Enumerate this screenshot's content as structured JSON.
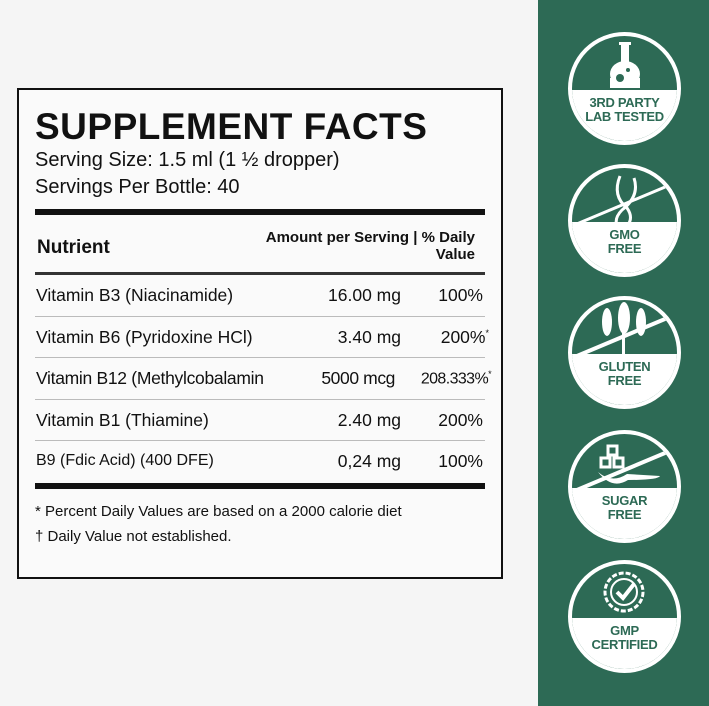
{
  "label": {
    "title": "SUPPLEMENT FACTS",
    "serving_size": "Serving Size: 1.5 ml (1 ½ dropper)",
    "servings_per": "Servings Per Bottle: 40",
    "col_nutrient": "Nutrient",
    "col_amount_line1": "Amount per Serving | % Daily",
    "col_amount_line2": "Value",
    "rows": [
      {
        "name": "Vitamin B3 (Niacinamide)",
        "amount": "16.00 mg",
        "dv": "100%",
        "mark": ""
      },
      {
        "name": "Vitamin B6 (Pyridoxine HCl)",
        "amount": "3.40 mg",
        "dv": "200%",
        "mark": "*"
      },
      {
        "name": "Vitamin B12 (Methylcobalamin",
        "amount": "5000 mcg",
        "dv": "208.333%",
        "mark": "*"
      },
      {
        "name": "Vitamin B1 (Thiamine)",
        "amount": "2.40 mg",
        "dv": "200%",
        "mark": ""
      },
      {
        "name": "B9 (Fdic Acid) (400 DFE)",
        "amount": "0,24 mg",
        "dv": "100%",
        "mark": ""
      }
    ],
    "footnote1": "* Percent Daily Values are based on a 2000 calorie diet",
    "footnote2": "† Daily Value not established."
  },
  "badges": [
    {
      "icon": "flask-icon",
      "line1": "3RD PARTY",
      "line2": "LAB TESTED"
    },
    {
      "icon": "dna-icon",
      "line1": "GMO",
      "line2": "FREE"
    },
    {
      "icon": "wheat-icon",
      "line1": "GLUTEN",
      "line2": "FREE"
    },
    {
      "icon": "sugar-spoon-icon",
      "line1": "SUGAR",
      "line2": "FREE"
    },
    {
      "icon": "check-seal-icon",
      "line1": "GMP",
      "line2": "CERTIFIED"
    }
  ],
  "colors": {
    "panel": "#2d6a55",
    "background": "#f5f5f5"
  }
}
